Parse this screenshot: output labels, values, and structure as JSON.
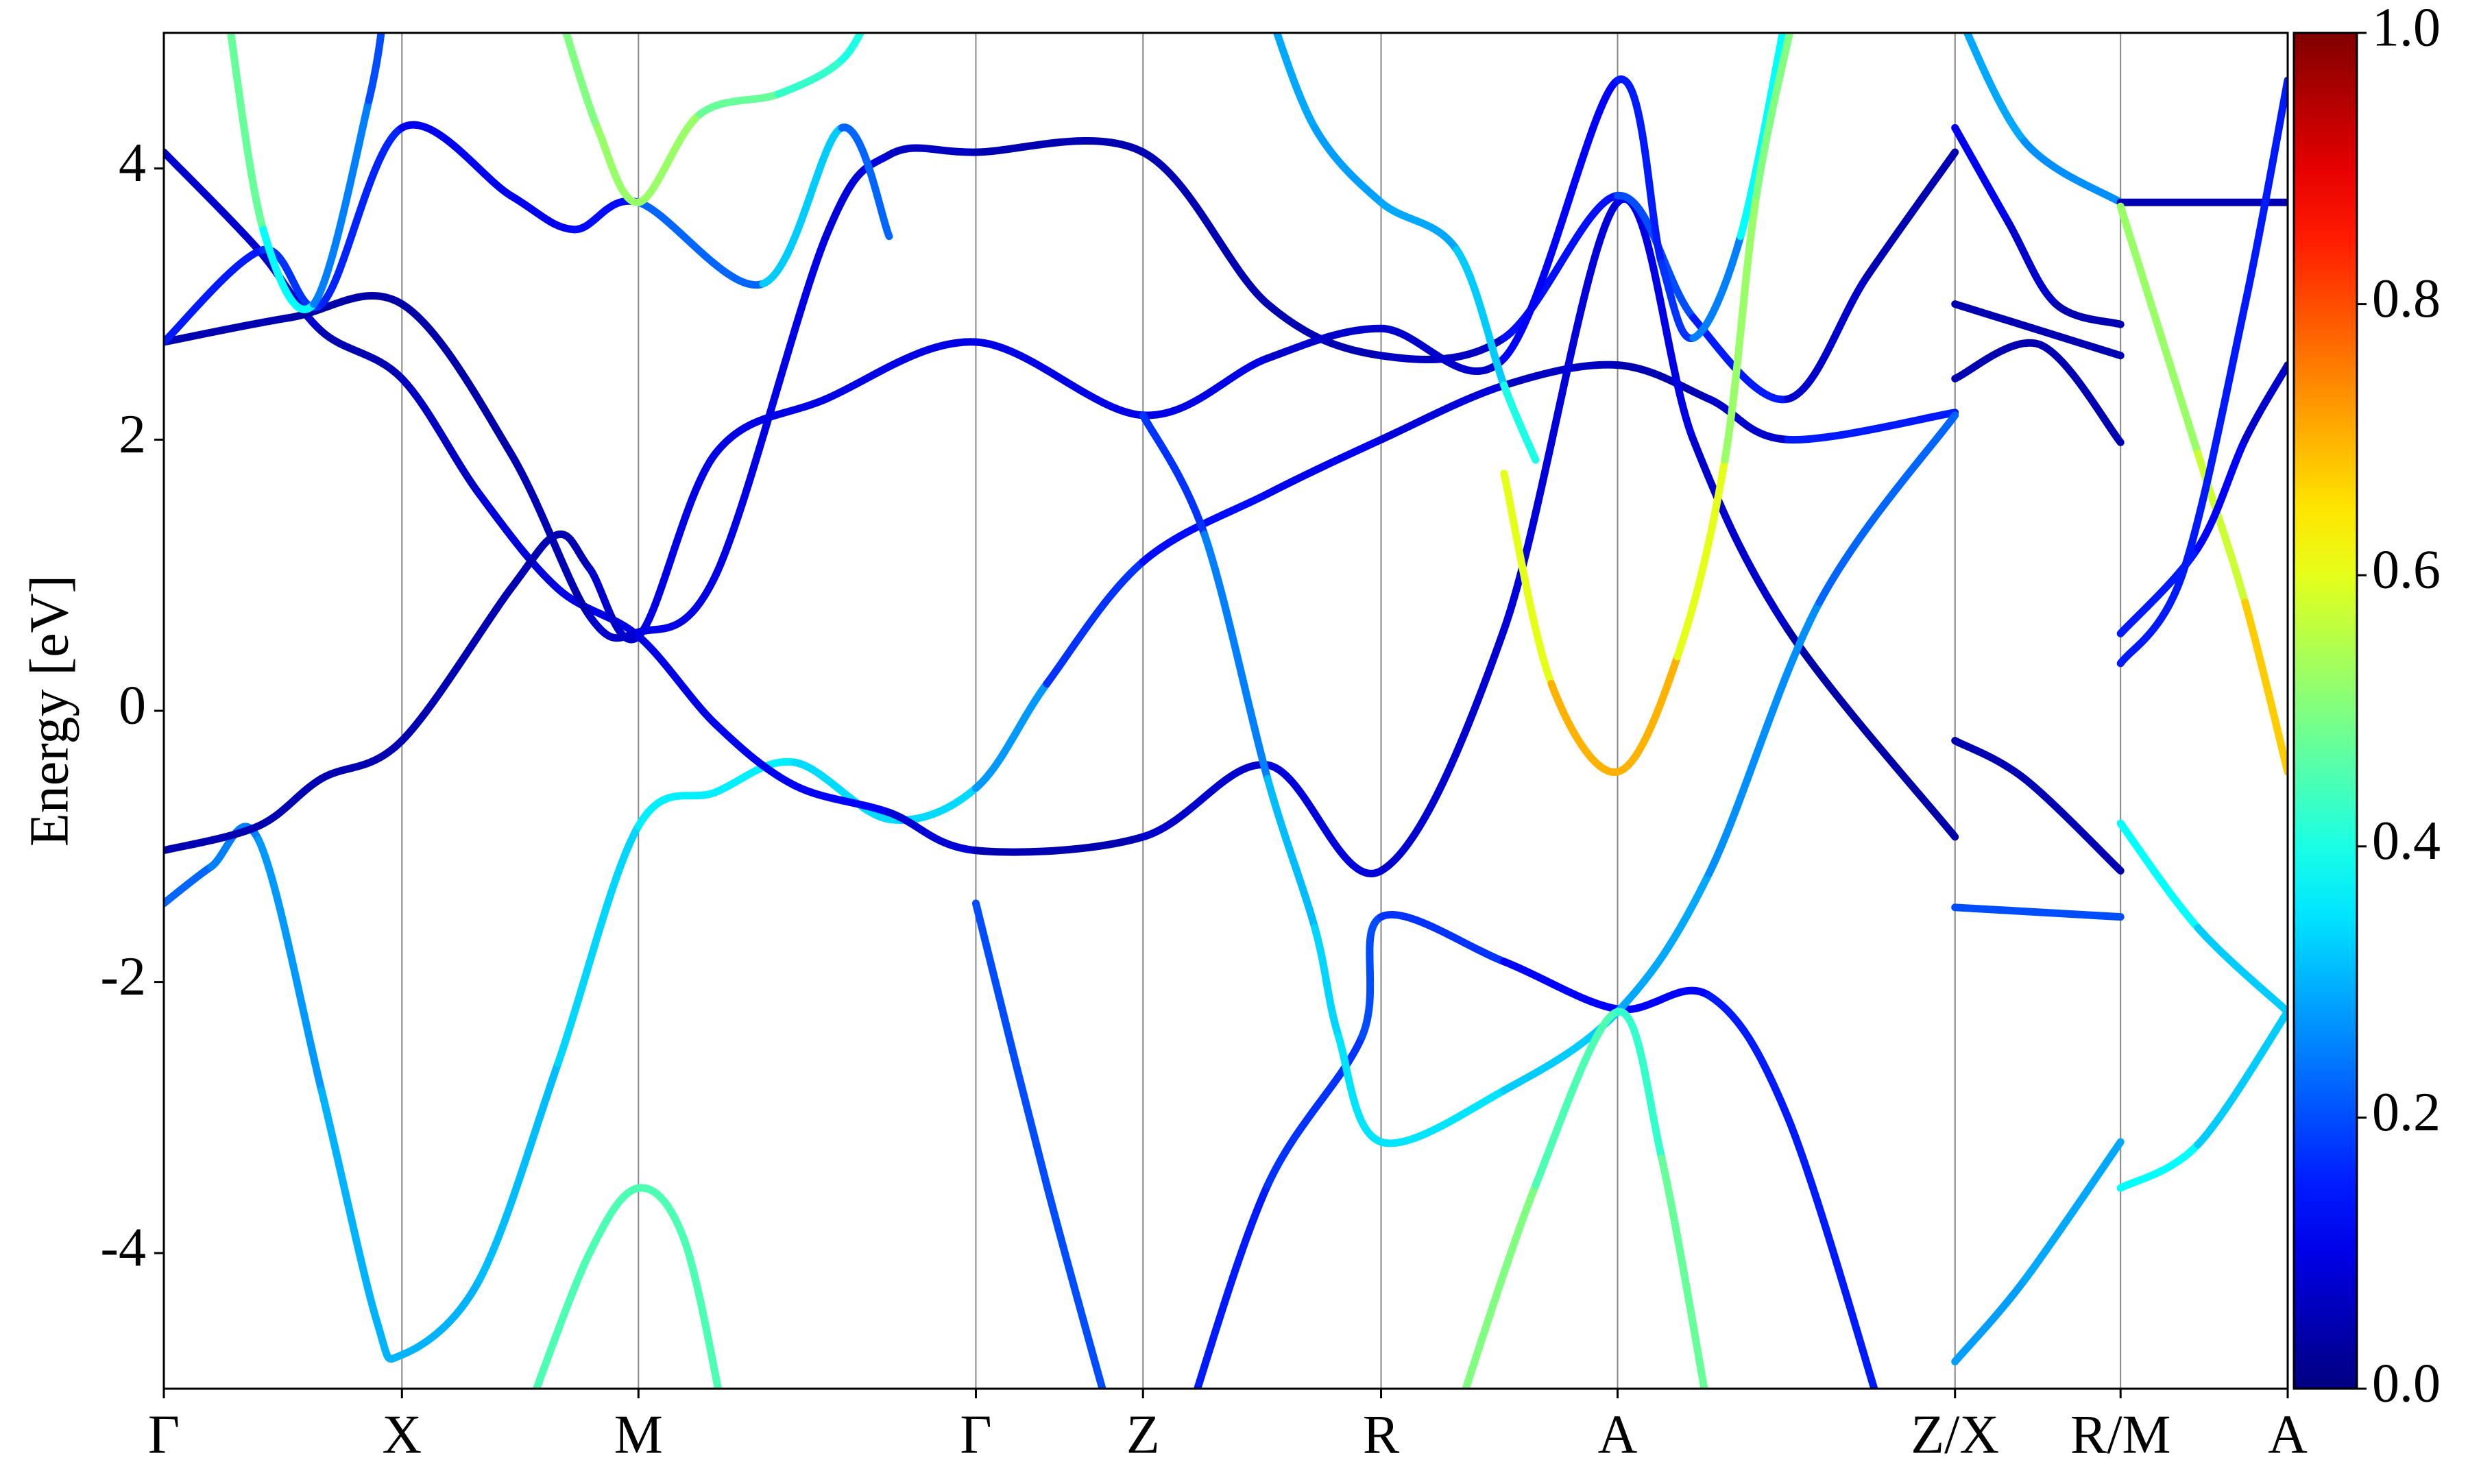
{
  "chart_data": {
    "type": "line",
    "ylabel": "Energy [eV]",
    "ylim": [
      -5,
      5
    ],
    "yticks": [
      -4,
      -2,
      0,
      2,
      4
    ],
    "xlim": [
      0,
      13.47
    ],
    "xticks": [
      {
        "value": 0,
        "label": "Γ"
      },
      {
        "value": 1.51,
        "label": "X"
      },
      {
        "value": 3.01,
        "label": "M"
      },
      {
        "value": 5.15,
        "label": "Γ"
      },
      {
        "value": 6.21,
        "label": "Z"
      },
      {
        "value": 7.72,
        "label": "R"
      },
      {
        "value": 9.22,
        "label": "A"
      },
      {
        "value": 11.36,
        "label": "Z/X"
      },
      {
        "value": 12.41,
        "label": "R/M"
      },
      {
        "value": 13.47,
        "label": "A"
      }
    ],
    "colormap": "jet",
    "clim": [
      0,
      1
    ],
    "cticks": [
      {
        "value": 0,
        "label": "0.0"
      },
      {
        "value": 0.2,
        "label": "0.2"
      },
      {
        "value": 0.4,
        "label": "0.4"
      },
      {
        "value": 0.6,
        "label": "0.6"
      },
      {
        "value": 0.8,
        "label": "0.8"
      },
      {
        "value": 1,
        "label": "1.0"
      }
    ],
    "series": [
      {
        "x": [
          0,
          0.3,
          0.6,
          1.0,
          1.35,
          1.51,
          2.0,
          2.5,
          3.01,
          3.5,
          4.0,
          4.6,
          5.15,
          5.6,
          6.21,
          7.0,
          7.72,
          8.5,
          9.22,
          9.8,
          10.3,
          11.36
        ],
        "values": [
          -1.42,
          -1.15,
          -0.95,
          -2.8,
          -4.5,
          -4.75,
          -4.2,
          -2.6,
          -0.85,
          -0.6,
          -0.38,
          -0.8,
          -0.57,
          0.2,
          1.1,
          1.6,
          2.0,
          2.4,
          2.55,
          2.3,
          2.0,
          2.2
        ],
        "weights": [
          0.2,
          0.25,
          0.25,
          0.3,
          0.3,
          0.3,
          0.3,
          0.32,
          0.35,
          0.37,
          0.35,
          0.33,
          0.35,
          0.2,
          0.15,
          0.12,
          0.1,
          0.08,
          0.05,
          0.05,
          0.1,
          0.2
        ]
      },
      {
        "x": [
          0,
          0.6,
          1.0,
          1.51,
          2.0,
          2.5,
          3.01,
          3.5,
          4.0,
          4.6,
          5.15,
          6.21,
          7.0,
          7.72,
          8.5,
          9.22,
          9.7,
          10.3,
          11.36
        ],
        "values": [
          4.12,
          3.4,
          2.8,
          2.45,
          1.6,
          0.9,
          0.55,
          -0.1,
          -0.55,
          -0.75,
          -1.03,
          -0.93,
          -0.4,
          -1.18,
          0.6,
          3.75,
          2.0,
          0.6,
          -0.93
        ],
        "weights": [
          0.05,
          0.1,
          0.05,
          0.05,
          0.08,
          0.1,
          0.1,
          0.1,
          0.12,
          0.12,
          0.05,
          0.05,
          0.1,
          0.08,
          0.08,
          0.1,
          0.1,
          0.05,
          0.03
        ]
      },
      {
        "x": [
          0,
          0.8,
          1.51,
          2.2,
          2.7,
          3.01,
          3.5,
          4.2,
          4.6,
          5.15,
          6.21,
          7.0,
          7.72,
          8.5,
          9.22,
          9.7,
          10.3,
          10.8,
          11.36
        ],
        "values": [
          2.72,
          2.9,
          3.0,
          1.9,
          0.7,
          0.58,
          1.0,
          3.5,
          4.1,
          4.12,
          4.12,
          3.0,
          2.62,
          2.75,
          3.8,
          2.9,
          2.3,
          3.2,
          4.12
        ],
        "weights": [
          0.05,
          0.05,
          0.03,
          0.05,
          0.05,
          0.1,
          0.1,
          0.1,
          0.08,
          0.05,
          0.05,
          0.05,
          0.05,
          0.08,
          0.2,
          0.2,
          0.1,
          0.05,
          0.05
        ]
      },
      {
        "x": [
          0,
          0.63,
          1.0,
          1.51,
          2.2,
          2.6,
          3.01,
          3.8,
          4.3,
          4.6
        ],
        "values": [
          2.72,
          3.4,
          3.0,
          4.3,
          3.8,
          3.55,
          3.75,
          3.15,
          4.3,
          3.5
        ],
        "weights": [
          0.15,
          0.15,
          0.2,
          0.12,
          0.1,
          0.12,
          0.15,
          0.3,
          0.35,
          0.1
        ]
      },
      {
        "x": [
          0,
          0.6,
          1.0,
          1.51,
          2.2,
          2.5,
          2.7,
          3.01,
          3.5,
          4.2,
          5.15,
          6.21,
          7.0,
          7.72,
          8.5,
          9.22,
          9.5,
          9.7,
          10.0,
          10.3
        ],
        "values": [
          -1.03,
          -0.85,
          -0.5,
          -0.22,
          0.9,
          1.3,
          1.05,
          0.55,
          1.9,
          2.3,
          2.72,
          2.18,
          2.6,
          2.82,
          2.6,
          4.65,
          3.3,
          2.75,
          3.5,
          5.2
        ],
        "weights": [
          0.05,
          0.05,
          0.05,
          0.05,
          0.05,
          0.05,
          0.05,
          0.1,
          0.1,
          0.1,
          0.1,
          0.1,
          0.1,
          0.05,
          0.1,
          0.15,
          0.15,
          0.2,
          0.3,
          0.45
        ]
      },
      {
        "x": [
          2.3,
          2.7,
          3.01,
          3.3,
          3.55
        ],
        "values": [
          -5.2,
          -4.0,
          -3.52,
          -3.9,
          -5.2
        ],
        "weights": [
          0.45,
          0.45,
          0.45,
          0.45,
          0.45
        ]
      },
      {
        "x": [
          0.4,
          0.63,
          0.95,
          1.3,
          1.4
        ],
        "values": [
          5.2,
          3.55,
          3.0,
          4.5,
          5.2
        ],
        "weights": [
          0.5,
          0.45,
          0.3,
          0.2,
          0.2
        ]
      },
      {
        "x": [
          2.5,
          2.75,
          3.01,
          3.4,
          3.9,
          4.3,
          4.5
        ],
        "values": [
          5.2,
          4.3,
          3.75,
          4.4,
          4.55,
          4.8,
          5.2
        ],
        "weights": [
          0.5,
          0.5,
          0.55,
          0.5,
          0.45,
          0.4,
          0.4
        ]
      },
      {
        "x": [
          5.15,
          5.6,
          6.0
        ],
        "values": [
          -1.42,
          -3.5,
          -5.2
        ],
        "weights": [
          0.2,
          0.2,
          0.2
        ]
      },
      {
        "x": [
          6.5,
          7.0,
          7.6,
          7.72,
          8.5,
          9.22,
          9.8,
          10.3,
          10.9
        ],
        "values": [
          -5.2,
          -3.5,
          -2.4,
          -1.52,
          -1.85,
          -2.2,
          -2.1,
          -3.0,
          -5.2
        ],
        "weights": [
          0.15,
          0.15,
          0.2,
          0.2,
          0.15,
          0.1,
          0.15,
          0.15,
          0.15
        ]
      },
      {
        "x": [
          6.21,
          6.6,
          7.0,
          7.3,
          7.45,
          7.72,
          8.5,
          9.22,
          9.8,
          10.5,
          11.36
        ],
        "values": [
          2.18,
          1.3,
          -0.5,
          -1.6,
          -2.4,
          -3.18,
          -2.8,
          -2.22,
          -1.2,
          0.8,
          2.18
        ],
        "weights": [
          0.15,
          0.2,
          0.3,
          0.32,
          0.35,
          0.35,
          0.35,
          0.3,
          0.28,
          0.25,
          0.2
        ]
      },
      {
        "x": [
          8.2,
          8.7,
          9.22,
          9.5,
          9.8
        ],
        "values": [
          -5.2,
          -3.5,
          -2.22,
          -3.3,
          -5.2
        ],
        "weights": [
          0.5,
          0.5,
          0.4,
          0.45,
          0.5
        ]
      },
      {
        "x": [
          8.5,
          8.8,
          9.22,
          9.6,
          9.9,
          10.1,
          10.35
        ],
        "values": [
          1.75,
          0.2,
          -0.45,
          0.4,
          1.85,
          3.8,
          5.2
        ],
        "weights": [
          0.55,
          0.65,
          0.75,
          0.65,
          0.55,
          0.5,
          0.5
        ]
      },
      {
        "x": [
          7.0,
          7.3,
          7.72,
          8.2,
          8.5,
          8.7
        ],
        "values": [
          5.2,
          4.3,
          3.75,
          3.4,
          2.4,
          1.85
        ],
        "weights": [
          0.3,
          0.28,
          0.28,
          0.3,
          0.35,
          0.45
        ]
      },
      {
        "x": [
          11.36,
          11.7,
          12.0,
          12.41
        ],
        "values": [
          4.3,
          3.6,
          3.0,
          2.85
        ],
        "weights": [
          0.12,
          0.1,
          0.05,
          0.05
        ]
      },
      {
        "x": [
          11.36,
          12.41
        ],
        "values": [
          3.0,
          2.62
        ],
        "weights": [
          0.05,
          0.05
        ]
      },
      {
        "x": [
          11.36,
          11.9,
          12.41
        ],
        "values": [
          2.45,
          2.7,
          1.98
        ],
        "weights": [
          0.05,
          0.05,
          0.05
        ]
      },
      {
        "x": [
          11.36,
          11.8,
          12.41
        ],
        "values": [
          -0.22,
          -0.5,
          -1.18
        ],
        "weights": [
          0.05,
          0.05,
          0.05
        ]
      },
      {
        "x": [
          11.36,
          12.41
        ],
        "values": [
          -1.45,
          -1.52
        ],
        "weights": [
          0.2,
          0.2
        ]
      },
      {
        "x": [
          11.36,
          11.8,
          12.41
        ],
        "values": [
          -4.8,
          -4.2,
          -3.18
        ],
        "weights": [
          0.28,
          0.28,
          0.3
        ]
      },
      {
        "x": [
          11.36,
          11.8,
          12.41
        ],
        "values": [
          5.2,
          4.2,
          3.75
        ],
        "weights": [
          0.3,
          0.28,
          0.25
        ]
      },
      {
        "x": [
          12.41,
          13.47
        ],
        "values": [
          3.75,
          3.75
        ],
        "weights": [
          0.05,
          0.05
        ]
      },
      {
        "x": [
          12.41,
          12.9,
          13.2,
          13.47
        ],
        "values": [
          3.72,
          1.9,
          0.8,
          -0.45
        ],
        "weights": [
          0.5,
          0.55,
          0.6,
          0.75
        ]
      },
      {
        "x": [
          12.41,
          12.9,
          13.2,
          13.47
        ],
        "values": [
          0.57,
          1.2,
          2.0,
          2.55
        ],
        "weights": [
          0.15,
          0.15,
          0.1,
          0.05
        ]
      },
      {
        "x": [
          12.41,
          12.8,
          13.2,
          13.47
        ],
        "values": [
          0.35,
          1.0,
          3.0,
          4.65
        ],
        "weights": [
          0.15,
          0.15,
          0.15,
          0.15
        ]
      },
      {
        "x": [
          12.41,
          12.9,
          13.47
        ],
        "values": [
          -0.83,
          -1.6,
          -2.22
        ],
        "weights": [
          0.4,
          0.35,
          0.3
        ]
      },
      {
        "x": [
          12.41,
          12.9,
          13.47
        ],
        "values": [
          -3.52,
          -3.2,
          -2.22
        ],
        "weights": [
          0.4,
          0.35,
          0.3
        ]
      }
    ]
  }
}
